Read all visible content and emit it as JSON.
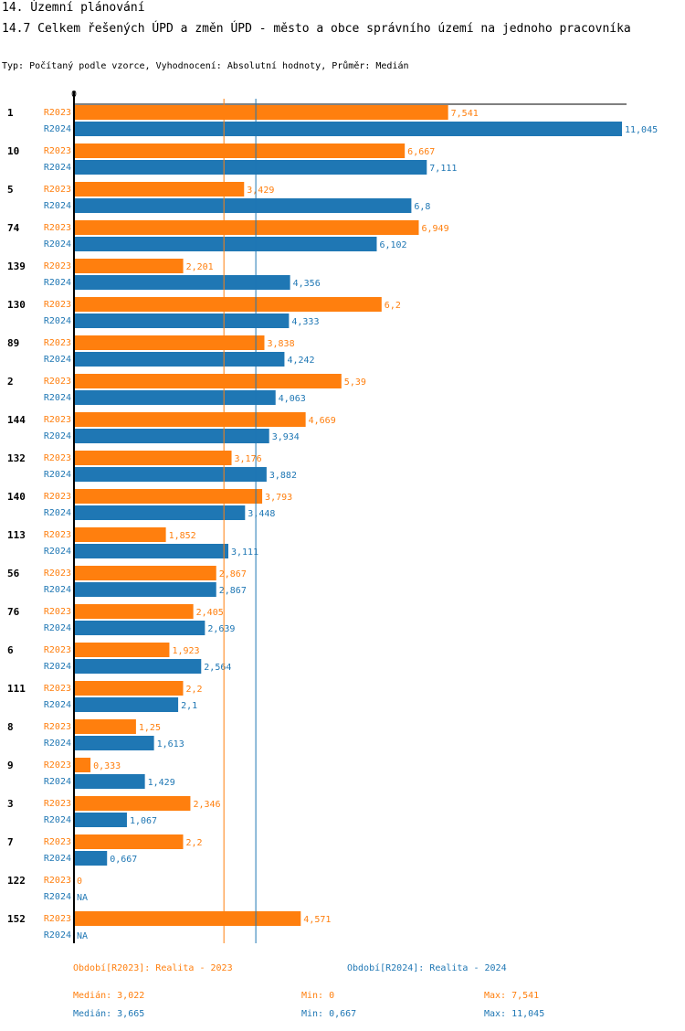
{
  "header": {
    "section": "14. Územní plánování",
    "title": "14.7 Celkem řešených ÚPD a změn ÚPD - město a obce správního území  na jednoho pracovníka",
    "subtitle": "Typ: Počítaný podle vzorce, Vyhodnocení: Absolutní hodnoty, Průměr: Medián"
  },
  "colors": {
    "r2023": "#ff7f0e",
    "r2024": "#1f77b4",
    "axis": "#000000"
  },
  "chart_data": {
    "type": "bar",
    "orientation": "horizontal",
    "axis_zero_label": "0",
    "xlim": [
      0,
      11.045
    ],
    "categories": [
      "1",
      "10",
      "5",
      "74",
      "139",
      "130",
      "89",
      "2",
      "144",
      "132",
      "140",
      "113",
      "56",
      "76",
      "6",
      "111",
      "8",
      "9",
      "3",
      "7",
      "122",
      "152"
    ],
    "series": [
      {
        "name": "R2023",
        "values": [
          7.541,
          6.667,
          3.429,
          6.949,
          2.201,
          6.2,
          3.838,
          5.39,
          4.669,
          3.176,
          3.793,
          1.852,
          2.867,
          2.405,
          1.923,
          2.2,
          1.25,
          0.333,
          2.346,
          2.2,
          0,
          4.571
        ],
        "labels": [
          "7,541",
          "6,667",
          "3,429",
          "6,949",
          "2,201",
          "6,2",
          "3,838",
          "5,39",
          "4,669",
          "3,176",
          "3,793",
          "1,852",
          "2,867",
          "2,405",
          "1,923",
          "2,2",
          "1,25",
          "0,333",
          "2,346",
          "2,2",
          "0",
          "4,571"
        ]
      },
      {
        "name": "R2024",
        "values": [
          11.045,
          7.111,
          6.8,
          6.102,
          4.356,
          4.333,
          4.242,
          4.063,
          3.934,
          3.882,
          3.448,
          3.111,
          2.867,
          2.639,
          2.564,
          2.1,
          1.613,
          1.429,
          1.067,
          0.667,
          null,
          null
        ],
        "labels": [
          "11,045",
          "7,111",
          "6,8",
          "6,102",
          "4,356",
          "4,333",
          "4,242",
          "4,063",
          "3,934",
          "3,882",
          "3,448",
          "3,111",
          "2,867",
          "2,639",
          "2,564",
          "2,1",
          "1,613",
          "1,429",
          "1,067",
          "0,667",
          "NA",
          "NA"
        ]
      }
    ],
    "medians": {
      "R2023": 3.022,
      "R2024": 3.665
    }
  },
  "legend": {
    "r2023_label": "Období[R2023]: Realita - 2023",
    "r2024_label": "Období[R2024]: Realita - 2024",
    "r2023_median": "Medián: 3,022",
    "r2023_min": "Min: 0",
    "r2023_max": "Max: 7,541",
    "r2024_median": "Medián: 3,665",
    "r2024_min": "Min: 0,667",
    "r2024_max": "Max: 11,045"
  }
}
